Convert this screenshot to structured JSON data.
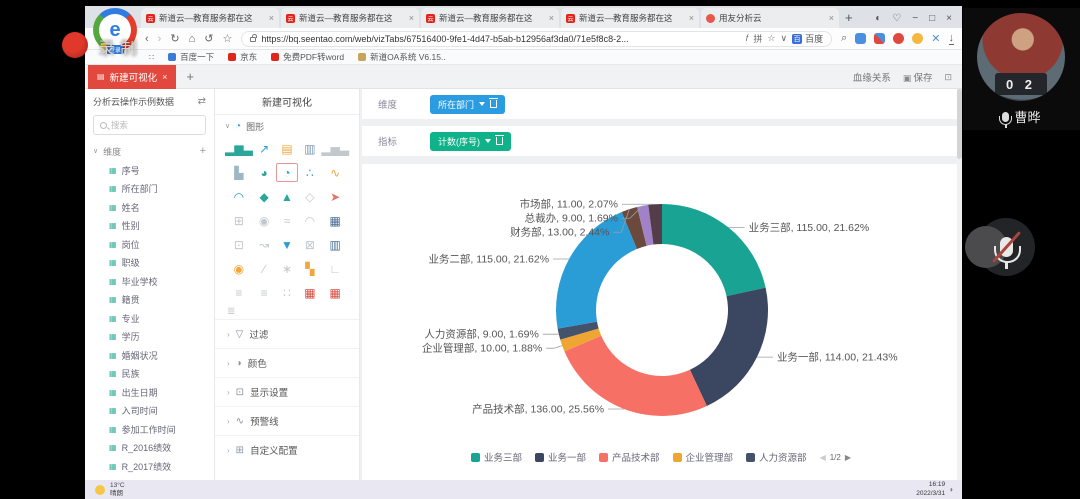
{
  "screen": {
    "recording_label": "录制",
    "taskbar": {
      "temperature": "13°C",
      "weather": "晴朗",
      "time": "16:19",
      "date": "2022/3/31"
    },
    "webcam": {
      "name": "曹晔",
      "avatar_digits": "0 2"
    }
  },
  "browser": {
    "tabs": [
      "新道云—教育服务都在这",
      "新道云—教育服务都在这",
      "新道云—教育服务都在这",
      "新道云—教育服务都在这",
      "用友分析云"
    ],
    "url": "https://bq.seentao.com/web/vizTabs/67516400-9fe1-4d47-b5ab-b12956af3da0/71e5f8c8-2...",
    "url_glyph": "拼",
    "address_extension": "百度",
    "bookmarks": [
      {
        "label": "百度一下",
        "color": "#3a7bd5"
      },
      {
        "label": "京东",
        "color": "#e1251b"
      },
      {
        "label": "免费PDF转word",
        "color": "#e1251b"
      },
      {
        "label": "新道OA系统 V6.15..",
        "color": "#caa35a"
      }
    ]
  },
  "app": {
    "page_tab": {
      "title": "新建可视化"
    },
    "toolbar": {
      "lineage": "血缘关系",
      "save": "保存"
    },
    "dataset_panel": {
      "title": "分析云操作示例数据",
      "search_placeholder": "搜索",
      "group_label": "维度",
      "fields": [
        "序号",
        "所在部门",
        "姓名",
        "性别",
        "岗位",
        "职级",
        "毕业学校",
        "籍贯",
        "专业",
        "学历",
        "婚姻状况",
        "民族",
        "出生日期",
        "入司时间",
        "参加工作时间",
        "R_2016绩效",
        "R_2017绩效"
      ]
    },
    "viz_panel": {
      "title": "新建可视化",
      "charts_section_label": "图形",
      "chart_icons": [
        {
          "name": "column-chart",
          "glyph": "▂▆▃",
          "color": "#2aa79a"
        },
        {
          "name": "line-chart",
          "glyph": "↗",
          "color": "#2a9dd6"
        },
        {
          "name": "bar-chart",
          "glyph": "▤",
          "color": "#f0a73e"
        },
        {
          "name": "stacked-bar-chart",
          "glyph": "▥",
          "color": "#7f9bb3"
        },
        {
          "name": "histogram",
          "glyph": "▂▅▃",
          "color": "#c3c8ce"
        },
        {
          "name": "pyramid-chart",
          "glyph": "▙",
          "color": "#9fb6c3"
        },
        {
          "name": "pie-chart",
          "glyph": "◕",
          "color": "#2aa79a"
        },
        {
          "name": "donut-chart",
          "glyph": "◔",
          "color": "#2a9dd6",
          "selected": true
        },
        {
          "name": "scatter-chart",
          "glyph": "∴",
          "color": "#2aa79a"
        },
        {
          "name": "trend-chart",
          "glyph": "∿",
          "color": "#f0a73e"
        },
        {
          "name": "area-chart",
          "glyph": "◠",
          "color": "#2a9dd6"
        },
        {
          "name": "map-chart",
          "glyph": "◆",
          "color": "#2aa79a"
        },
        {
          "name": "treemap-chart",
          "glyph": "▲",
          "color": "#2aa79a"
        },
        {
          "name": "map-outline-chart",
          "glyph": "◇",
          "color": "#c3c8ce"
        },
        {
          "name": "pointer-map-chart",
          "glyph": "➤",
          "color": "#e57368"
        },
        {
          "name": "radar-chart",
          "glyph": "⊞",
          "color": "#c3c8ce"
        },
        {
          "name": "bubble-chart",
          "glyph": "◉",
          "color": "#c3c8ce"
        },
        {
          "name": "curve-chart",
          "glyph": "≈",
          "color": "#c3c8ce"
        },
        {
          "name": "gauge-chart",
          "glyph": "◠",
          "color": "#c3c8ce"
        },
        {
          "name": "data-table",
          "glyph": "▦",
          "color": "#4a6e96"
        },
        {
          "name": "matrix-chart",
          "glyph": "⊡",
          "color": "#c3c8ce"
        },
        {
          "name": "rocket-chart",
          "glyph": "↝",
          "color": "#c3c8ce"
        },
        {
          "name": "funnel-chart",
          "glyph": "▼",
          "color": "#2a9dd6"
        },
        {
          "name": "relation-chart",
          "glyph": "⊠",
          "color": "#c3c8ce"
        },
        {
          "name": "grid-table",
          "glyph": "▥",
          "color": "#4a6e96"
        },
        {
          "name": "coin-chart",
          "glyph": "◉",
          "color": "#f0a73e"
        },
        {
          "name": "slope-chart",
          "glyph": "∕",
          "color": "#c3c8ce"
        },
        {
          "name": "snow-chart",
          "glyph": "∗",
          "color": "#c3c8ce"
        },
        {
          "name": "org-chart",
          "glyph": "▚",
          "color": "#f0a73e"
        },
        {
          "name": "ladder-chart",
          "glyph": "∟",
          "color": "#c3c8ce"
        },
        {
          "name": "list-chart",
          "glyph": "≡",
          "color": "#c3c8ce"
        },
        {
          "name": "parallel-chart",
          "glyph": "≡",
          "color": "#c3c8ce"
        },
        {
          "name": "cluster-chart",
          "glyph": "∷",
          "color": "#c3c8ce"
        },
        {
          "name": "calendar-chart",
          "glyph": "▦",
          "color": "#d94f43"
        },
        {
          "name": "calendar-heat-chart",
          "glyph": "▦",
          "color": "#d94f43"
        }
      ],
      "grid_footer_glyph": "≣",
      "sections": [
        {
          "label": "过滤",
          "glyph": "▽"
        },
        {
          "label": "颜色",
          "glyph": "◑"
        },
        {
          "label": "显示设置",
          "glyph": "⊡"
        },
        {
          "label": "预警线",
          "glyph": "∿"
        },
        {
          "label": "自定义配置",
          "glyph": "⊞"
        }
      ]
    },
    "config": {
      "dimension_label": "维度",
      "dimension_field": "所在部门",
      "metric_label": "指标",
      "metric_field": "计数(序号)",
      "dimension_chip_color": "#2b9ce0",
      "metric_chip_color": "#10b389"
    }
  },
  "chart_data": {
    "type": "pie",
    "subtype": "donut",
    "title": "",
    "categories": [
      "业务三部",
      "业务一部",
      "产品技术部",
      "企业管理部",
      "人力资源部",
      "业务二部",
      "财务部",
      "总裁办",
      "市场部"
    ],
    "values": [
      115,
      114,
      136,
      10,
      9,
      115,
      13,
      9,
      11
    ],
    "value_labels": [
      "115.00",
      "114.00",
      "136.00",
      "10.00",
      "9.00",
      "115.00",
      "13.00",
      "9.00",
      "11.00"
    ],
    "percents": [
      "21.62%",
      "21.43%",
      "25.56%",
      "1.88%",
      "1.69%",
      "21.62%",
      "2.44%",
      "1.69%",
      "2.07%"
    ],
    "colors": [
      "#18a393",
      "#3b4660",
      "#f77066",
      "#efa532",
      "#44536b",
      "#2a9dd6",
      "#6b4a3d",
      "#a182c8",
      "#533d49"
    ],
    "label_format": "name, value, percent",
    "legend": {
      "position": "bottom",
      "visible_count": 5,
      "page": "1/2",
      "prev_glyph": "◀",
      "next_glyph": "▶"
    }
  }
}
